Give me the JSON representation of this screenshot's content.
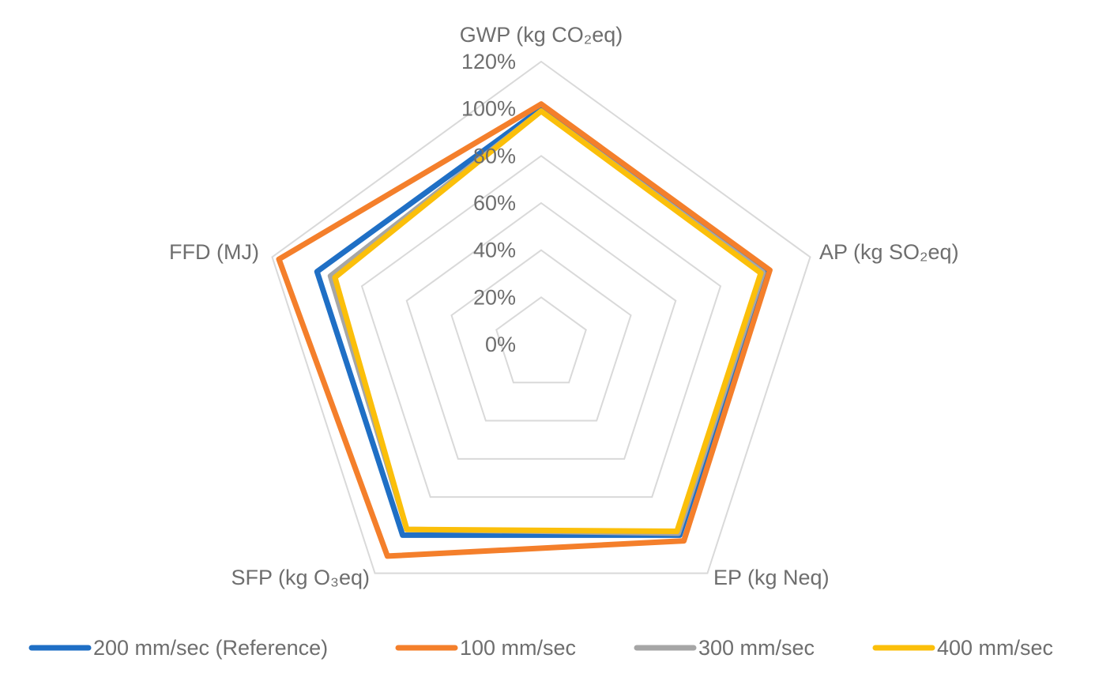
{
  "chart_data": {
    "type": "radar",
    "axes": [
      "GWP (kg CO₂eq)",
      "AP (kg SO₂eq)",
      "EP (kg Neq)",
      "SFP (kg O₃eq)",
      "FFD (MJ)"
    ],
    "ticks": [
      "0%",
      "20%",
      "40%",
      "60%",
      "80%",
      "100%",
      "120%"
    ],
    "range": [
      0,
      120
    ],
    "grid": true,
    "legend_position": "bottom",
    "series": [
      {
        "name": "200 mm/sec (Reference)",
        "color": "#1f6fc5",
        "values": [
          100,
          100,
          100,
          100,
          100
        ]
      },
      {
        "name": "100 mm/sec",
        "color": "#f47f2b",
        "values": [
          102,
          102,
          103,
          111,
          117
        ]
      },
      {
        "name": "300 mm/sec",
        "color": "#a6a6a6",
        "values": [
          99,
          99,
          99,
          97,
          94
        ]
      },
      {
        "name": "400 mm/sec",
        "color": "#fbbf0a",
        "values": [
          99,
          98,
          98,
          97,
          92
        ]
      }
    ]
  }
}
